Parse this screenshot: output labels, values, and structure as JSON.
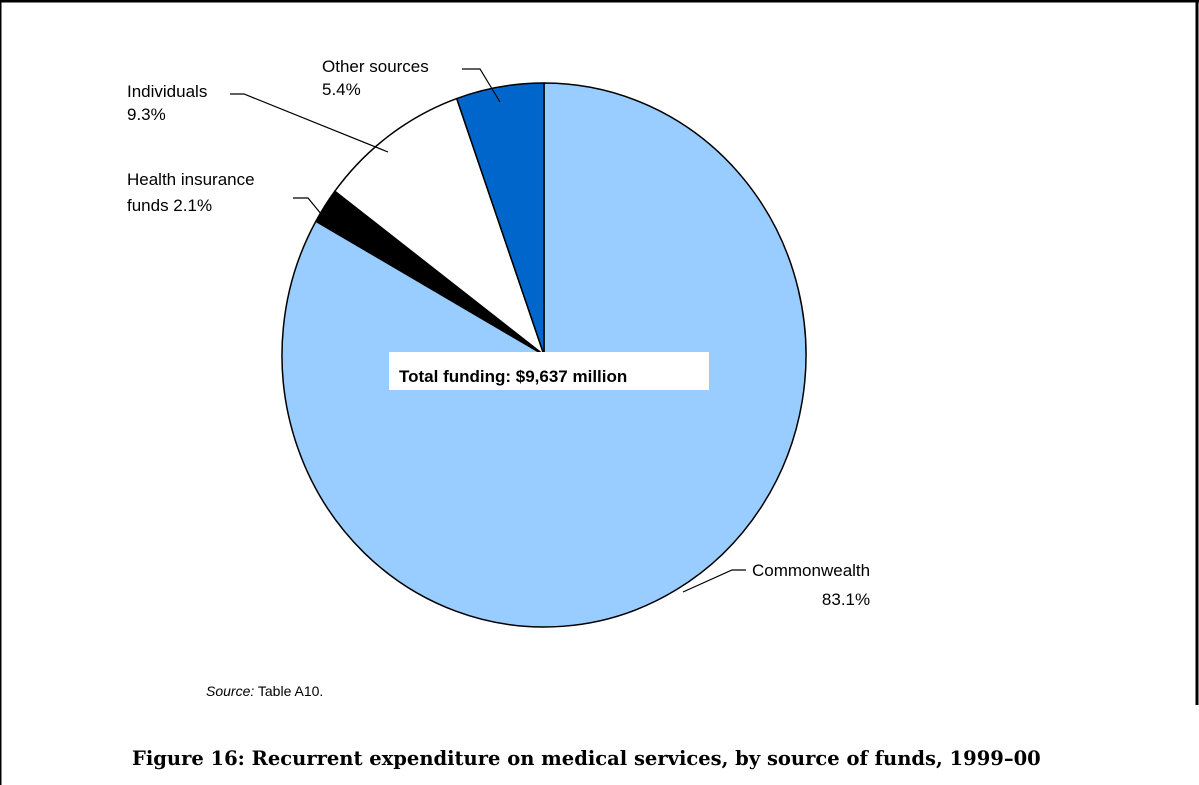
{
  "chart_data": {
    "type": "pie",
    "slices": [
      {
        "label": "Commonwealth",
        "value": 83.1,
        "value_label": "83.1%",
        "color": "#99ccff"
      },
      {
        "label": "Health insurance funds",
        "value": 2.1,
        "value_label": "2.1%",
        "color": "#000000"
      },
      {
        "label": "Individuals",
        "value": 9.3,
        "value_label": "9.3%",
        "color": "#ffffff"
      },
      {
        "label": "Other sources",
        "value": 5.4,
        "value_label": "5.4%",
        "color": "#0066cc"
      }
    ],
    "start_angle_deg": 0,
    "direction": "clockwise",
    "center_label": "Total funding: $9,637 million",
    "legend": "none"
  },
  "labels": {
    "other_line1": "Other sources",
    "other_line2": "5.4%",
    "individuals_line1": "Individuals",
    "individuals_line2": "9.3%",
    "health_line1": "Health insurance",
    "health_line2": "funds 2.1%",
    "commonwealth_line1": "Commonwealth",
    "commonwealth_line2": "83.1%"
  },
  "source": {
    "prefix": "Source:",
    "text": "Table A10."
  },
  "caption": "Figure 16: Recurrent expenditure on medical services, by source of funds, 1999–00"
}
